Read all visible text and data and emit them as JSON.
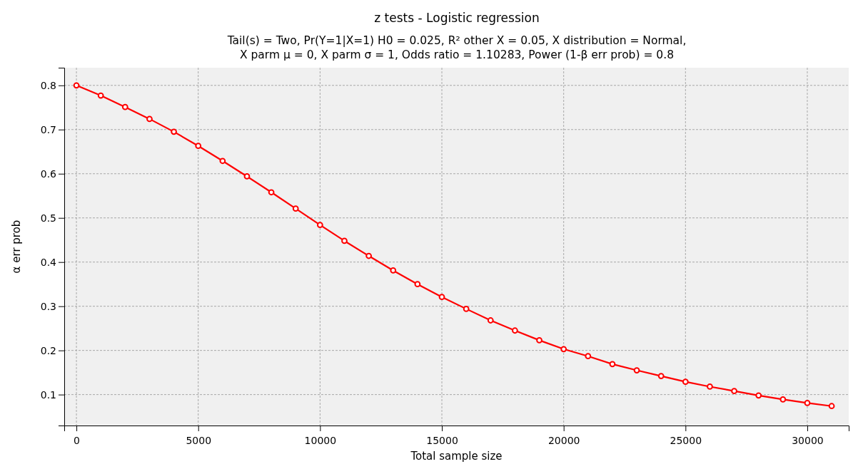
{
  "chart_data": {
    "type": "line",
    "title": "z tests - Logistic regression",
    "subtitle": "Tail(s) = Two, Pr(Y=1|X=1) H0 = 0.025, R² other X = 0.05, X distribution = Normal,\nX parm μ = 0, X parm σ = 1, Odds ratio = 1.10283, Power (1-β err prob) = 0.8",
    "xlabel": "Total sample size",
    "ylabel": "α err prob",
    "x": [
      0,
      1000,
      2000,
      3000,
      4000,
      5000,
      6000,
      7000,
      8000,
      9000,
      10000,
      11000,
      12000,
      13000,
      14000,
      15000,
      16000,
      17000,
      18000,
      19000,
      20000,
      21000,
      22000,
      23000,
      24000,
      25000,
      26000,
      27000,
      28000,
      29000,
      30000,
      31000
    ],
    "series": [
      {
        "color": "#ff0000",
        "values": [
          0.8,
          0.777,
          0.751,
          0.724,
          0.695,
          0.663,
          0.629,
          0.594,
          0.558,
          0.521,
          0.484,
          0.448,
          0.414,
          0.381,
          0.35,
          0.321,
          0.294,
          0.268,
          0.245,
          0.223,
          0.203,
          0.187,
          0.169,
          0.155,
          0.142,
          0.129,
          0.118,
          0.108,
          0.098,
          0.089,
          0.081,
          0.074
        ]
      }
    ],
    "xlim": [
      -500,
      31700
    ],
    "ylim": [
      0.03,
      0.84
    ],
    "xticks": [
      0,
      5000,
      10000,
      15000,
      20000,
      25000,
      30000
    ],
    "yticks": [
      0.1,
      0.2,
      0.3,
      0.4,
      0.5,
      0.6,
      0.7,
      0.8
    ],
    "grid": true,
    "marker": "circle",
    "line_style": "solid"
  }
}
